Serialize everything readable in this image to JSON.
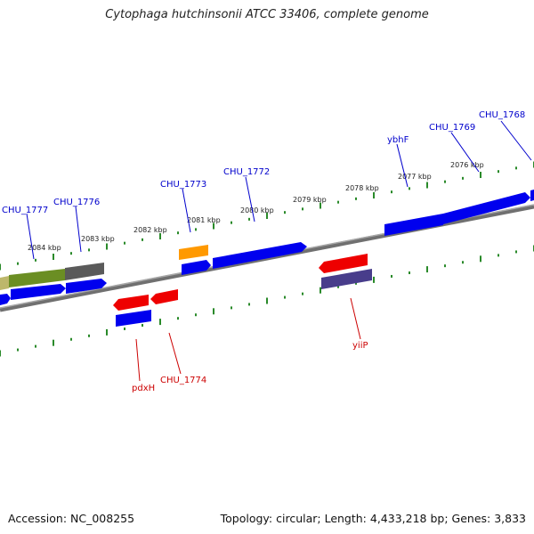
{
  "title": "Cytophaga hutchinsonii ATCC 33406, complete genome",
  "footer": {
    "accession": "Accession: NC_008255",
    "topology": "Topology: circular; Length: 4,433,218 bp; Genes: 3,833"
  },
  "colors": {
    "backbone": "#888888",
    "tick": "#2a8a2a",
    "gene_blue": "#0000ee",
    "gene_red": "#ee0000",
    "gene_orange": "#ff9900",
    "gene_olive": "#6b8e23",
    "gene_khaki": "#bdb76b",
    "gene_gray": "#696969",
    "gene_navy": "#483d8b",
    "label_blue": "#0000cc",
    "label_red": "#cc0000"
  },
  "scale_labels": [
    "2084 kbp",
    "2083 kbp",
    "2082 kbp",
    "2081 kbp",
    "2080 kbp",
    "2079 kbp",
    "2078 kbp",
    "2077 kbp",
    "2076 kbp"
  ],
  "gene_labels": [
    "CHU_1777",
    "CHU_1776",
    "CHU_1773",
    "CHU_1772",
    "ybhF",
    "CHU_1769",
    "CHU_1768",
    "pdxH",
    "CHU_1774",
    "yiiP"
  ]
}
